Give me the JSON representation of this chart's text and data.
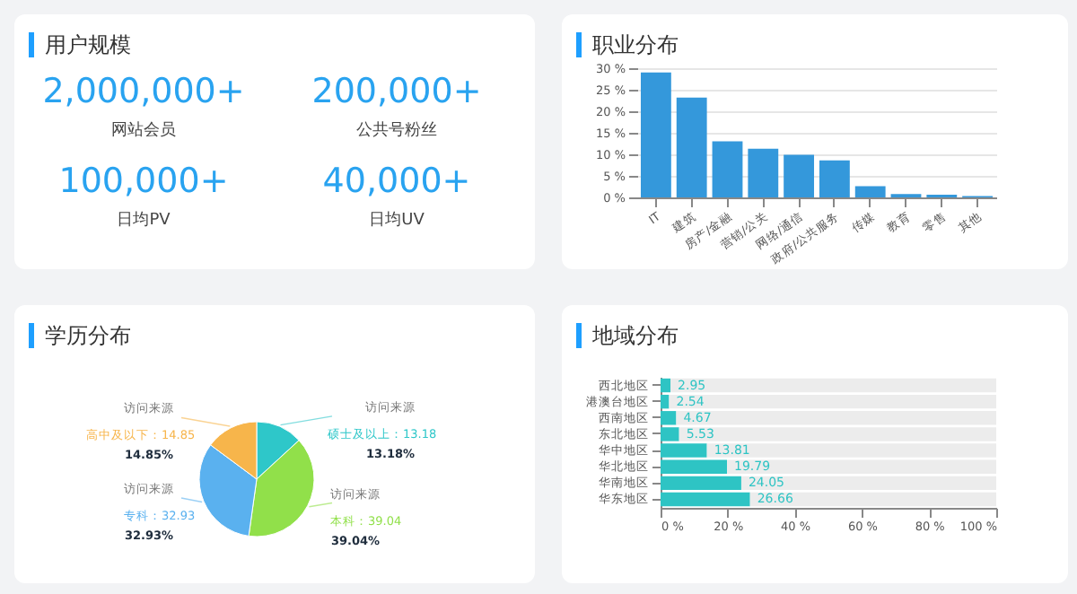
{
  "chart_data": [
    {
      "type": "other",
      "title": "用户规模",
      "annotations": [
        "2,000,000+",
        "网站会员",
        "200,000+",
        "公共号粉丝",
        "100,000+",
        "日均PV",
        "40,000+",
        "日均UV"
      ]
    },
    {
      "type": "bar",
      "title": "职业分布",
      "categories": [
        "IT",
        "建筑",
        "房产/金融",
        "营销/公关",
        "网络/通信",
        "政府/公共服务",
        "传媒",
        "教育",
        "零售",
        "其他"
      ],
      "values": [
        29,
        23.2,
        13,
        11.3,
        9.9,
        8.6,
        2.6,
        0.8,
        0.6,
        0.3
      ],
      "color": "#3498db",
      "ylim": [
        0,
        30
      ],
      "yticks": [
        {
          "value": 0,
          "label": "0 %"
        },
        {
          "value": 5,
          "label": "5 %"
        },
        {
          "value": 10,
          "label": "10 %"
        },
        {
          "value": 15,
          "label": "15 %"
        },
        {
          "value": 20,
          "label": "20 %"
        },
        {
          "value": 25,
          "label": "25 %"
        },
        {
          "value": 30,
          "label": "30 %"
        }
      ],
      "grid": "y"
    },
    {
      "type": "pie",
      "title": "学历分布",
      "categories": [
        "硕士及以上",
        "本科",
        "专科",
        "高中及以下"
      ],
      "values": [
        13.18,
        39.04,
        32.93,
        14.85
      ],
      "colors": [
        "#2ec7c9",
        "#91e04a",
        "#5ab1ef",
        "#f7b54b"
      ],
      "value_labels": [
        "：13.18",
        "：39.04",
        "：32.93",
        "：14.85"
      ],
      "annotations": [
        "访问来源",
        "访问来源",
        "访问来源",
        "访问来源",
        "13.18%",
        "39.04%",
        "32.93%",
        "14.85%"
      ]
    },
    {
      "type": "bar",
      "title": "地域分布",
      "orientation": "horizontal",
      "categories": [
        "西北地区",
        "港澳台地区",
        "西南地区",
        "东北地区",
        "华中地区",
        "华北地区",
        "华南地区",
        "华东地区"
      ],
      "xlim": [
        0,
        100
      ],
      "xticks": [
        {
          "value": 0,
          "label": "0 %"
        },
        {
          "value": 20,
          "label": "20 %"
        },
        {
          "value": 40,
          "label": "40 %"
        },
        {
          "value": 60,
          "label": "60 %"
        },
        {
          "value": 80,
          "label": "80 %"
        },
        {
          "value": 100,
          "label": "100 %"
        }
      ],
      "series": [
        {
          "color": "#2ec4c4",
          "values": [
            2.95,
            2.54,
            4.67,
            5.53,
            13.81,
            19.79,
            24.05,
            26.66
          ],
          "value_labels": [
            "2.95",
            "2.54",
            "4.67",
            "5.53",
            "13.81",
            "19.79",
            "24.05",
            "26.66"
          ]
        },
        {
          "color": "#ececec",
          "values": [
            97.05,
            97.46,
            95.33,
            94.47,
            86.19,
            80.21,
            75.95,
            73.34
          ]
        }
      ],
      "stacked": true
    }
  ]
}
